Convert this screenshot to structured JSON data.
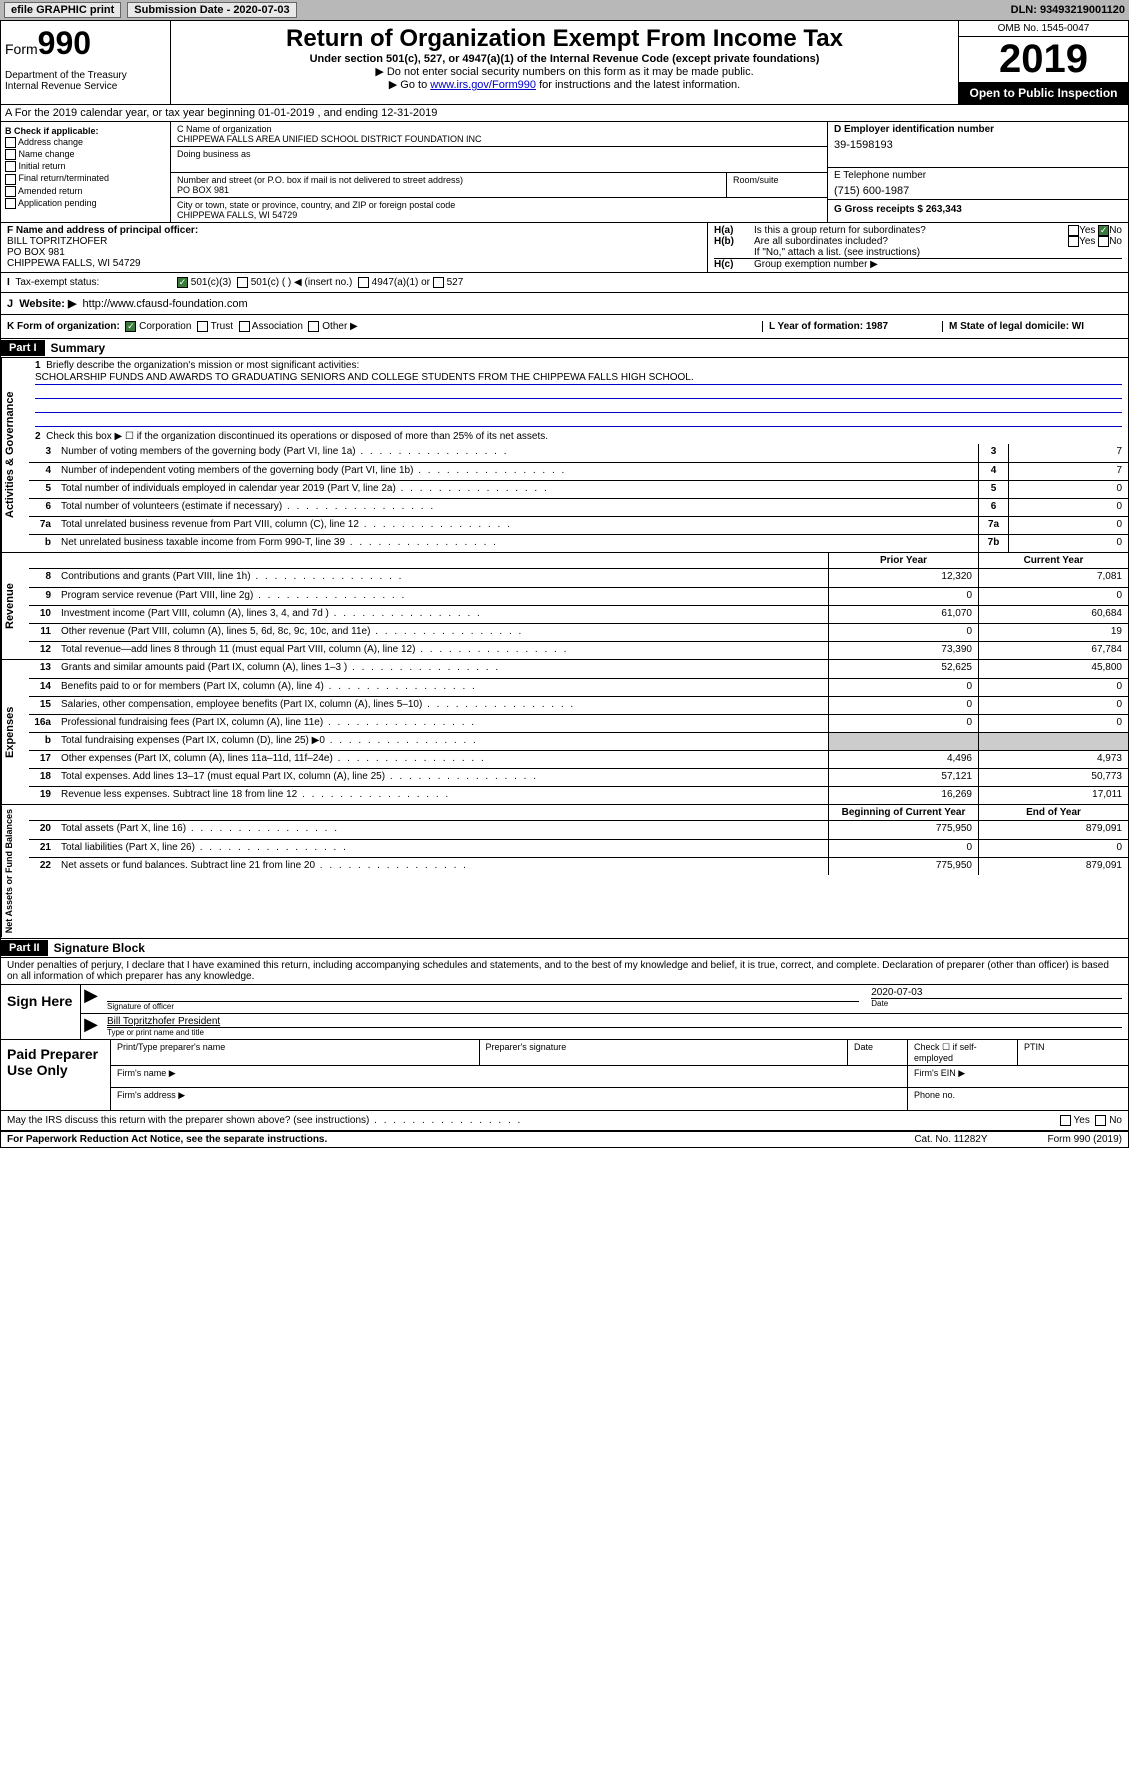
{
  "topbar": {
    "efile": "efile GRAPHIC print",
    "submission_label": "Submission Date - 2020-07-03",
    "dln": "DLN: 93493219001120"
  },
  "header": {
    "form_word": "Form",
    "form_num": "990",
    "dept": "Department of the Treasury\nInternal Revenue Service",
    "title": "Return of Organization Exempt From Income Tax",
    "subtitle": "Under section 501(c), 527, or 4947(a)(1) of the Internal Revenue Code (except private foundations)",
    "instruct1": "▶ Do not enter social security numbers on this form as it may be made public.",
    "instruct2_pre": "▶ Go to ",
    "instruct2_link": "www.irs.gov/Form990",
    "instruct2_post": " for instructions and the latest information.",
    "omb": "OMB No. 1545-0047",
    "year": "2019",
    "open": "Open to Public Inspection"
  },
  "row_a": "A For the 2019 calendar year, or tax year beginning 01-01-2019   , and ending 12-31-2019",
  "box_b": {
    "label": "B Check if applicable:",
    "opts": [
      "Address change",
      "Name change",
      "Initial return",
      "Final return/terminated",
      "Amended return",
      "Application pending"
    ]
  },
  "box_c": {
    "name_label": "C Name of organization",
    "name": "CHIPPEWA FALLS AREA UNIFIED SCHOOL DISTRICT FOUNDATION INC",
    "dba_label": "Doing business as",
    "addr_label": "Number and street (or P.O. box if mail is not delivered to street address)",
    "room_label": "Room/suite",
    "addr": "PO BOX 981",
    "city_label": "City or town, state or province, country, and ZIP or foreign postal code",
    "city": "CHIPPEWA FALLS, WI  54729"
  },
  "box_d": {
    "label": "D Employer identification number",
    "ein": "39-1598193"
  },
  "box_e": {
    "label": "E Telephone number",
    "val": "(715) 600-1987"
  },
  "box_g": {
    "label": "G Gross receipts $ 263,343"
  },
  "box_f": {
    "label": "F  Name and address of principal officer:",
    "l1": "BILL TOPRITZHOFER",
    "l2": "PO BOX 981",
    "l3": "CHIPPEWA FALLS, WI  54729"
  },
  "box_h": {
    "ha_label": "Is this a group return for subordinates?",
    "hb_label": "Are all subordinates included?",
    "hb_note": "If \"No,\" attach a list. (see instructions)",
    "hc_label": "Group exemption number ▶"
  },
  "row_i": {
    "label": "Tax-exempt status:",
    "o1": "501(c)(3)",
    "o2": "501(c) (   ) ◀ (insert no.)",
    "o3": "4947(a)(1) or",
    "o4": "527"
  },
  "row_j": {
    "label": "Website: ▶",
    "val": "http://www.cfausd-foundation.com"
  },
  "row_k": {
    "label": "K Form of organization:",
    "o1": "Corporation",
    "o2": "Trust",
    "o3": "Association",
    "o4": "Other ▶"
  },
  "row_l": {
    "label": "L Year of formation: 1987"
  },
  "row_m": {
    "label": "M State of legal domicile: WI"
  },
  "part1": {
    "hdr": "Part I",
    "title": "Summary",
    "l1_label": "Briefly describe the organization's mission or most significant activities:",
    "l1_text": "SCHOLARSHIP FUNDS AND AWARDS TO GRADUATING SENIORS AND COLLEGE STUDENTS FROM THE CHIPPEWA FALLS HIGH SCHOOL.",
    "l2": "Check this box ▶ ☐  if the organization discontinued its operations or disposed of more than 25% of its net assets.",
    "gov_lines": [
      {
        "n": "3",
        "t": "Number of voting members of the governing body (Part VI, line 1a)",
        "box": "3",
        "v": "7"
      },
      {
        "n": "4",
        "t": "Number of independent voting members of the governing body (Part VI, line 1b)",
        "box": "4",
        "v": "7"
      },
      {
        "n": "5",
        "t": "Total number of individuals employed in calendar year 2019 (Part V, line 2a)",
        "box": "5",
        "v": "0"
      },
      {
        "n": "6",
        "t": "Total number of volunteers (estimate if necessary)",
        "box": "6",
        "v": "0"
      },
      {
        "n": "7a",
        "t": "Total unrelated business revenue from Part VIII, column (C), line 12",
        "box": "7a",
        "v": "0"
      },
      {
        "n": "b",
        "t": "Net unrelated business taxable income from Form 990-T, line 39",
        "box": "7b",
        "v": "0"
      }
    ],
    "col_prior": "Prior Year",
    "col_current": "Current Year",
    "rev_lines": [
      {
        "n": "8",
        "t": "Contributions and grants (Part VIII, line 1h)",
        "p": "12,320",
        "c": "7,081"
      },
      {
        "n": "9",
        "t": "Program service revenue (Part VIII, line 2g)",
        "p": "0",
        "c": "0"
      },
      {
        "n": "10",
        "t": "Investment income (Part VIII, column (A), lines 3, 4, and 7d )",
        "p": "61,070",
        "c": "60,684"
      },
      {
        "n": "11",
        "t": "Other revenue (Part VIII, column (A), lines 5, 6d, 8c, 9c, 10c, and 11e)",
        "p": "0",
        "c": "19"
      },
      {
        "n": "12",
        "t": "Total revenue—add lines 8 through 11 (must equal Part VIII, column (A), line 12)",
        "p": "73,390",
        "c": "67,784"
      }
    ],
    "exp_lines": [
      {
        "n": "13",
        "t": "Grants and similar amounts paid (Part IX, column (A), lines 1–3 )",
        "p": "52,625",
        "c": "45,800"
      },
      {
        "n": "14",
        "t": "Benefits paid to or for members (Part IX, column (A), line 4)",
        "p": "0",
        "c": "0"
      },
      {
        "n": "15",
        "t": "Salaries, other compensation, employee benefits (Part IX, column (A), lines 5–10)",
        "p": "0",
        "c": "0"
      },
      {
        "n": "16a",
        "t": "Professional fundraising fees (Part IX, column (A), line 11e)",
        "p": "0",
        "c": "0"
      },
      {
        "n": "b",
        "t": "Total fundraising expenses (Part IX, column (D), line 25) ▶0",
        "p": "",
        "c": "",
        "shade": true
      },
      {
        "n": "17",
        "t": "Other expenses (Part IX, column (A), lines 11a–11d, 11f–24e)",
        "p": "4,496",
        "c": "4,973"
      },
      {
        "n": "18",
        "t": "Total expenses. Add lines 13–17 (must equal Part IX, column (A), line 25)",
        "p": "57,121",
        "c": "50,773"
      },
      {
        "n": "19",
        "t": "Revenue less expenses. Subtract line 18 from line 12",
        "p": "16,269",
        "c": "17,011"
      }
    ],
    "col_begin": "Beginning of Current Year",
    "col_end": "End of Year",
    "na_lines": [
      {
        "n": "20",
        "t": "Total assets (Part X, line 16)",
        "p": "775,950",
        "c": "879,091"
      },
      {
        "n": "21",
        "t": "Total liabilities (Part X, line 26)",
        "p": "0",
        "c": "0"
      },
      {
        "n": "22",
        "t": "Net assets or fund balances. Subtract line 21 from line 20",
        "p": "775,950",
        "c": "879,091"
      }
    ],
    "vlabels": {
      "gov": "Activities & Governance",
      "rev": "Revenue",
      "exp": "Expenses",
      "na": "Net Assets or Fund Balances"
    }
  },
  "part2": {
    "hdr": "Part II",
    "title": "Signature Block",
    "perjury": "Under penalties of perjury, I declare that I have examined this return, including accompanying schedules and statements, and to the best of my knowledge and belief, it is true, correct, and complete. Declaration of preparer (other than officer) is based on all information of which preparer has any knowledge.",
    "sign_here": "Sign Here",
    "sig_officer": "Signature of officer",
    "sig_date": "2020-07-03",
    "date_label": "Date",
    "officer_name": "Bill Topritzhofer  President",
    "officer_sub": "Type or print name and title",
    "paid": "Paid Preparer Use Only",
    "p_name": "Print/Type preparer's name",
    "p_sig": "Preparer's signature",
    "p_date": "Date",
    "p_check": "Check ☐ if self-employed",
    "p_ptin": "PTIN",
    "p_firm": "Firm's name   ▶",
    "p_ein": "Firm's EIN ▶",
    "p_addr": "Firm's address ▶",
    "p_phone": "Phone no.",
    "discuss": "May the IRS discuss this return with the preparer shown above? (see instructions)",
    "yes": "Yes",
    "no": "No"
  },
  "footer": {
    "notice": "For Paperwork Reduction Act Notice, see the separate instructions.",
    "cat": "Cat. No. 11282Y",
    "form": "Form 990 (2019)"
  }
}
